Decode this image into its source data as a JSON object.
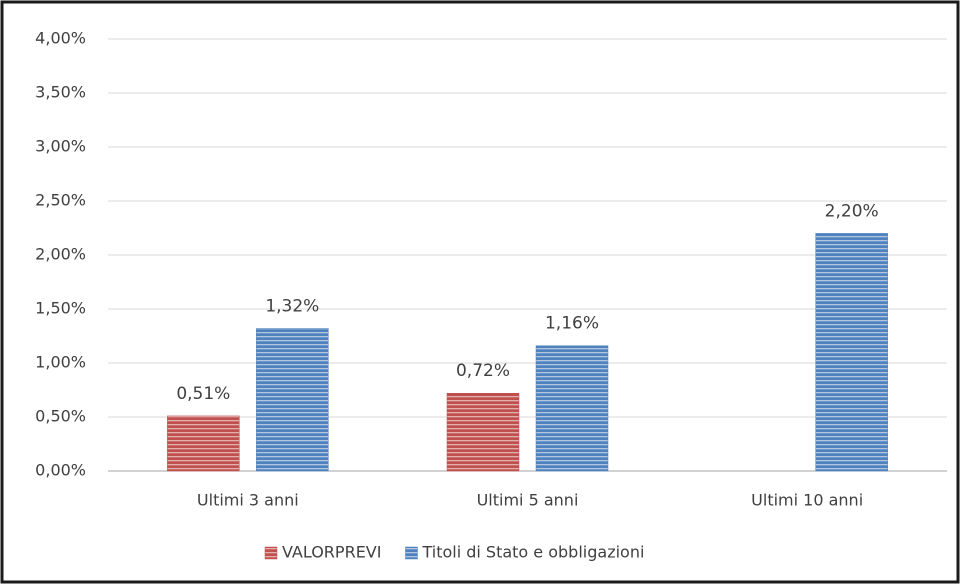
{
  "chart_data": {
    "type": "bar",
    "categories": [
      "Ultimi 3 anni",
      "Ultimi 5 anni",
      "Ultimi 10 anni"
    ],
    "series": [
      {
        "name": "VALORPREVI",
        "color": "#c0504d",
        "values": [
          0.51,
          0.72,
          null
        ],
        "value_labels": [
          "0,51%",
          "0,72%",
          null
        ]
      },
      {
        "name": "Titoli di Stato e obbligazioni",
        "color": "#4f81bd",
        "values": [
          1.32,
          1.16,
          2.2
        ],
        "value_labels": [
          "1,32%",
          "1,16%",
          "2,20%"
        ]
      }
    ],
    "ylim": [
      0,
      4
    ],
    "yticks": [
      {
        "value": 0,
        "label": "0,00%"
      },
      {
        "value": 0.5,
        "label": "0,50%"
      },
      {
        "value": 1,
        "label": "1,00%"
      },
      {
        "value": 1.5,
        "label": "1,50%"
      },
      {
        "value": 2,
        "label": "2,00%"
      },
      {
        "value": 2.5,
        "label": "2,50%"
      },
      {
        "value": 3,
        "label": "3,00%"
      },
      {
        "value": 3.5,
        "label": "3,50%"
      },
      {
        "value": 4,
        "label": "4,00%"
      }
    ],
    "grid": true,
    "legend": "bottom"
  }
}
